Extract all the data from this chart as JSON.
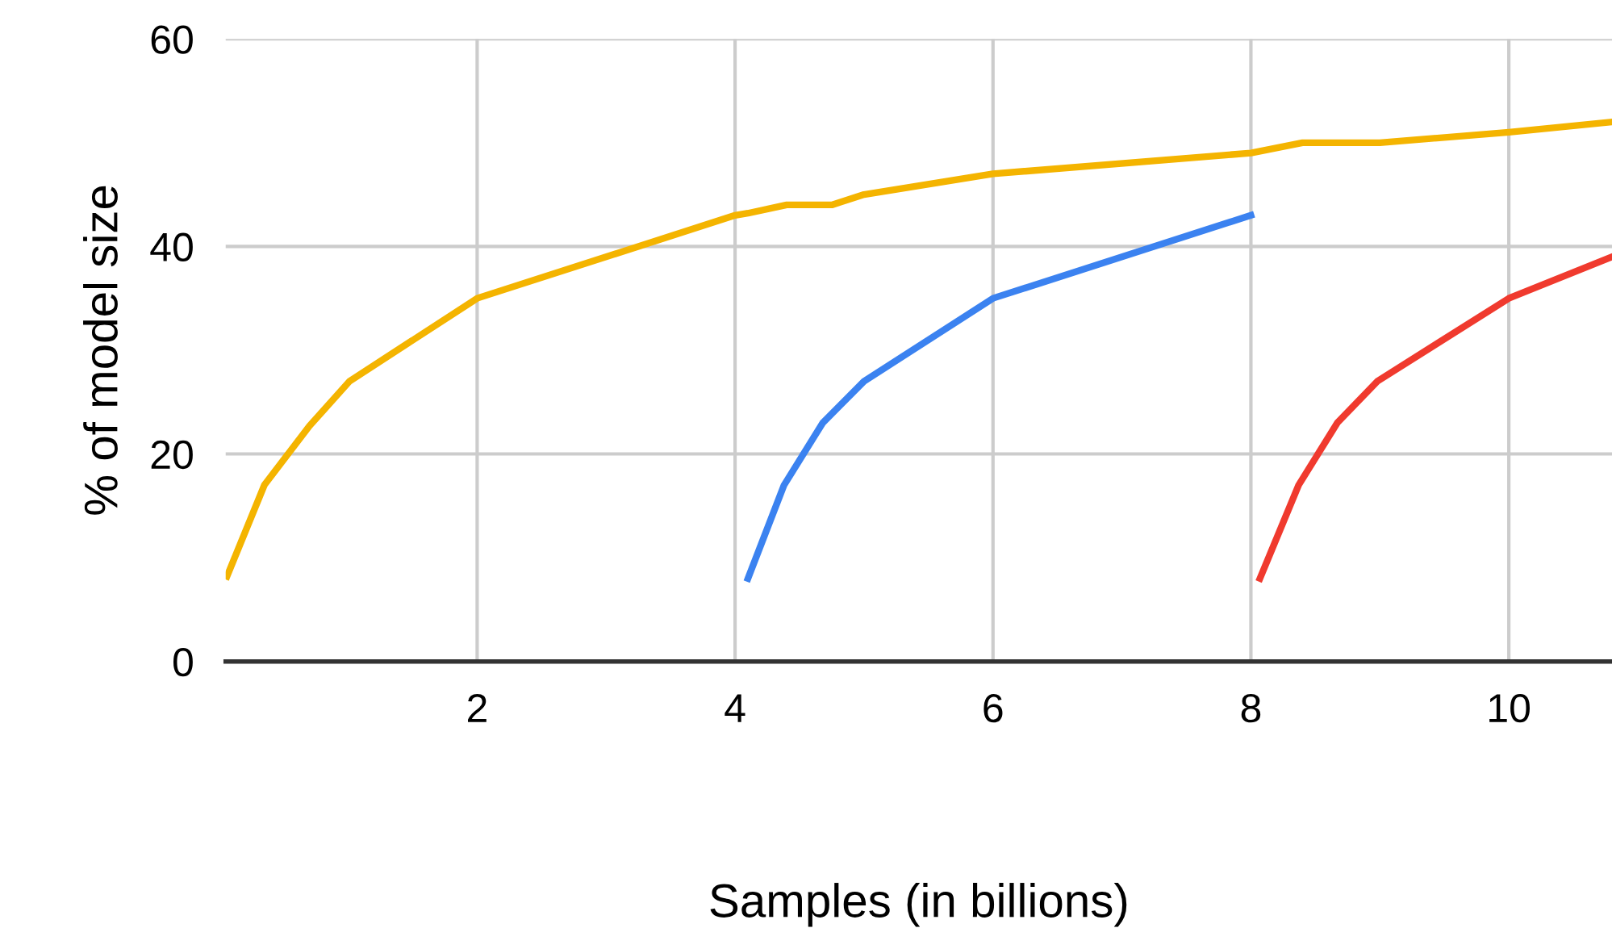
{
  "chart_data": {
    "type": "line",
    "xlabel": "Samples (in billions)",
    "ylabel": "% of model size",
    "xlim": [
      0.05,
      10.8
    ],
    "ylim": [
      0,
      60
    ],
    "xticks": [
      2,
      4,
      6,
      8,
      10
    ],
    "yticks": [
      0,
      20,
      40,
      60
    ],
    "grid": true,
    "marker": "none",
    "line_style": "solid",
    "series": [
      {
        "color": "#f4b400",
        "x": [
          0.06,
          0.35,
          0.7,
          1.01,
          2,
          4,
          4.1,
          4.4,
          4.75,
          5,
          6,
          8,
          8.4,
          9,
          10,
          10.8
        ],
        "values": [
          8.2,
          17,
          22.7,
          27,
          35,
          43,
          43.2,
          44,
          44,
          45,
          47,
          49,
          50,
          50,
          51,
          52
        ]
      },
      {
        "color": "#3b82f0",
        "x": [
          4.1,
          4.38,
          4.68,
          5,
          6,
          8
        ],
        "values": [
          8,
          17,
          23,
          27,
          35,
          43
        ]
      },
      {
        "color": "#f03a2e",
        "x": [
          8.07,
          8.37,
          8.67,
          8.98,
          10,
          10.8
        ],
        "values": [
          8,
          17,
          23,
          27,
          35,
          39
        ]
      }
    ]
  }
}
